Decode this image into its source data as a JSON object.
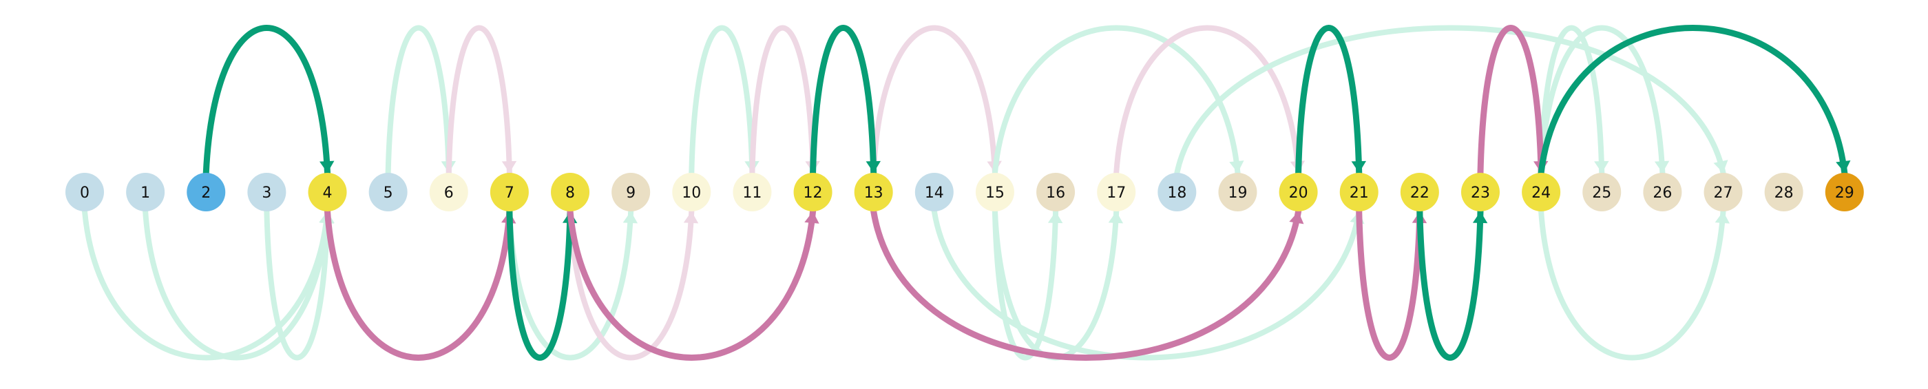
{
  "colors": {
    "node_default": "#c3dde9",
    "node_source": "#56b0e4",
    "node_target": "#e39b12",
    "node_yellow": "#efe040",
    "node_cream": "#faf6d9",
    "node_beige": "#eadfc4",
    "edge_green": "#079e76",
    "edge_pink": "#cb78a6",
    "edge_green_faint": "#cdf2e4",
    "edge_pink_faint": "#eed8e4"
  },
  "nodes": [
    {
      "label": "0",
      "fill": "node_default"
    },
    {
      "label": "1",
      "fill": "node_default"
    },
    {
      "label": "2",
      "fill": "node_source"
    },
    {
      "label": "3",
      "fill": "node_default"
    },
    {
      "label": "4",
      "fill": "node_yellow"
    },
    {
      "label": "5",
      "fill": "node_default"
    },
    {
      "label": "6",
      "fill": "node_cream"
    },
    {
      "label": "7",
      "fill": "node_yellow"
    },
    {
      "label": "8",
      "fill": "node_yellow"
    },
    {
      "label": "9",
      "fill": "node_beige"
    },
    {
      "label": "10",
      "fill": "node_cream"
    },
    {
      "label": "11",
      "fill": "node_cream"
    },
    {
      "label": "12",
      "fill": "node_yellow"
    },
    {
      "label": "13",
      "fill": "node_yellow"
    },
    {
      "label": "14",
      "fill": "node_default"
    },
    {
      "label": "15",
      "fill": "node_cream"
    },
    {
      "label": "16",
      "fill": "node_beige"
    },
    {
      "label": "17",
      "fill": "node_cream"
    },
    {
      "label": "18",
      "fill": "node_default"
    },
    {
      "label": "19",
      "fill": "node_beige"
    },
    {
      "label": "20",
      "fill": "node_yellow"
    },
    {
      "label": "21",
      "fill": "node_yellow"
    },
    {
      "label": "22",
      "fill": "node_yellow"
    },
    {
      "label": "23",
      "fill": "node_yellow"
    },
    {
      "label": "24",
      "fill": "node_yellow"
    },
    {
      "label": "25",
      "fill": "node_beige"
    },
    {
      "label": "26",
      "fill": "node_beige"
    },
    {
      "label": "27",
      "fill": "node_beige"
    },
    {
      "label": "28",
      "fill": "node_beige"
    },
    {
      "label": "29",
      "fill": "node_target"
    }
  ],
  "edges": [
    {
      "from": 0,
      "to": 4,
      "side": "below",
      "color": "edge_green_faint",
      "emphasis": "faint"
    },
    {
      "from": 1,
      "to": 4,
      "side": "below",
      "color": "edge_green_faint",
      "emphasis": "faint"
    },
    {
      "from": 3,
      "to": 4,
      "side": "below",
      "color": "edge_green_faint",
      "emphasis": "faint"
    },
    {
      "from": 5,
      "to": 6,
      "side": "above",
      "color": "edge_green_faint",
      "emphasis": "faint"
    },
    {
      "from": 6,
      "to": 7,
      "side": "above",
      "color": "edge_pink_faint",
      "emphasis": "faint"
    },
    {
      "from": 7,
      "to": 9,
      "side": "below",
      "color": "edge_green_faint",
      "emphasis": "faint"
    },
    {
      "from": 8,
      "to": 10,
      "side": "below",
      "color": "edge_pink_faint",
      "emphasis": "faint"
    },
    {
      "from": 10,
      "to": 11,
      "side": "above",
      "color": "edge_green_faint",
      "emphasis": "faint"
    },
    {
      "from": 11,
      "to": 12,
      "side": "above",
      "color": "edge_pink_faint",
      "emphasis": "faint"
    },
    {
      "from": 13,
      "to": 15,
      "side": "above",
      "color": "edge_pink_faint",
      "emphasis": "faint"
    },
    {
      "from": 14,
      "to": 21,
      "side": "below",
      "color": "edge_green_faint",
      "emphasis": "faint"
    },
    {
      "from": 15,
      "to": 16,
      "side": "below",
      "color": "edge_green_faint",
      "emphasis": "faint"
    },
    {
      "from": 15,
      "to": 17,
      "side": "below",
      "color": "edge_green_faint",
      "emphasis": "faint"
    },
    {
      "from": 15,
      "to": 19,
      "side": "above",
      "color": "edge_green_faint",
      "emphasis": "faint"
    },
    {
      "from": 17,
      "to": 20,
      "side": "above",
      "color": "edge_pink_faint",
      "emphasis": "faint"
    },
    {
      "from": 18,
      "to": 27,
      "side": "above",
      "color": "edge_green_faint",
      "emphasis": "faint"
    },
    {
      "from": 24,
      "to": 25,
      "side": "above",
      "color": "edge_green_faint",
      "emphasis": "faint"
    },
    {
      "from": 24,
      "to": 26,
      "side": "above",
      "color": "edge_green_faint",
      "emphasis": "faint"
    },
    {
      "from": 24,
      "to": 27,
      "side": "below",
      "color": "edge_green_faint",
      "emphasis": "faint"
    },
    {
      "from": 2,
      "to": 4,
      "side": "above",
      "color": "edge_green",
      "emphasis": "strong"
    },
    {
      "from": 4,
      "to": 7,
      "side": "below",
      "color": "edge_pink",
      "emphasis": "strong"
    },
    {
      "from": 7,
      "to": 8,
      "side": "below",
      "color": "edge_green",
      "emphasis": "strong"
    },
    {
      "from": 8,
      "to": 12,
      "side": "below",
      "color": "edge_pink",
      "emphasis": "strong"
    },
    {
      "from": 12,
      "to": 13,
      "side": "above",
      "color": "edge_green",
      "emphasis": "strong"
    },
    {
      "from": 13,
      "to": 20,
      "side": "below",
      "color": "edge_pink",
      "emphasis": "strong"
    },
    {
      "from": 20,
      "to": 21,
      "side": "above",
      "color": "edge_green",
      "emphasis": "strong"
    },
    {
      "from": 21,
      "to": 22,
      "side": "below",
      "color": "edge_pink",
      "emphasis": "strong"
    },
    {
      "from": 22,
      "to": 23,
      "side": "below",
      "color": "edge_green",
      "emphasis": "strong"
    },
    {
      "from": 23,
      "to": 24,
      "side": "above",
      "color": "edge_pink",
      "emphasis": "strong"
    },
    {
      "from": 24,
      "to": 29,
      "side": "above",
      "color": "edge_green",
      "emphasis": "strong"
    }
  ]
}
